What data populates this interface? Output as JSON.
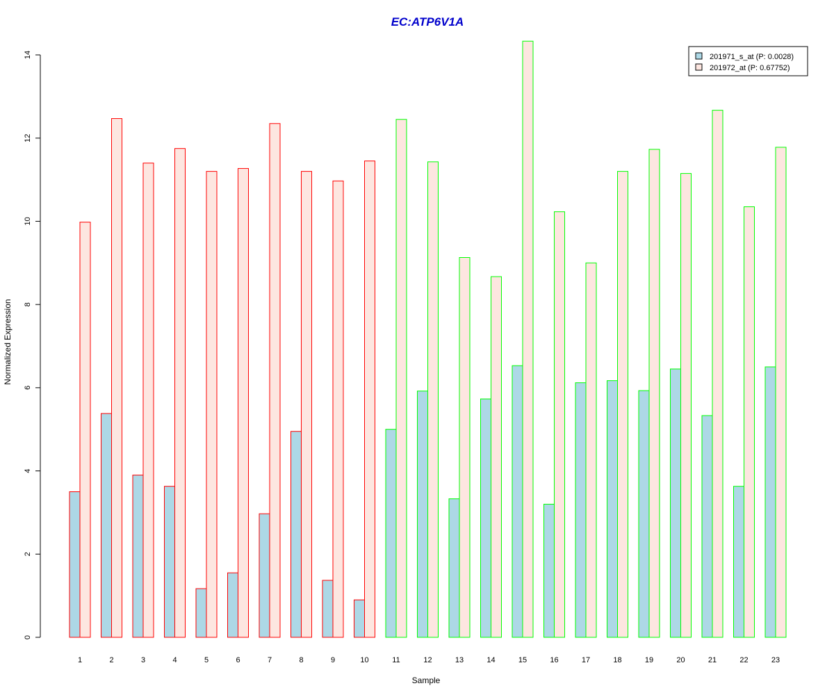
{
  "chart_data": {
    "type": "bar",
    "title": "EC:ATP6V1A",
    "xlabel": "Sample",
    "ylabel": "Normalized Expression",
    "ylim": [
      0,
      14
    ],
    "yticks": [
      0,
      2,
      4,
      6,
      8,
      10,
      12,
      14
    ],
    "categories": [
      "1",
      "2",
      "3",
      "4",
      "5",
      "6",
      "7",
      "8",
      "9",
      "10",
      "11",
      "12",
      "13",
      "14",
      "15",
      "16",
      "17",
      "18",
      "19",
      "20",
      "21",
      "22",
      "23"
    ],
    "series": [
      {
        "name": "201971_s_at (P: 0.0028)",
        "fill": "#add8e6",
        "values": [
          3.5,
          5.38,
          3.9,
          3.63,
          1.17,
          1.55,
          2.97,
          4.95,
          1.37,
          0.9,
          5.0,
          5.92,
          3.33,
          5.73,
          6.53,
          3.2,
          6.12,
          6.17,
          5.93,
          6.45,
          5.33,
          3.63,
          6.5
        ]
      },
      {
        "name": "201972_at (P: 0.67752)",
        "fill": "#fde6e0",
        "values": [
          9.98,
          12.47,
          11.4,
          11.75,
          11.2,
          11.27,
          12.35,
          11.2,
          10.97,
          11.45,
          12.45,
          11.43,
          9.13,
          8.67,
          14.33,
          10.23,
          9.0,
          11.2,
          11.73,
          11.15,
          12.67,
          10.35,
          11.78
        ]
      }
    ],
    "group_border_colors": [
      "#ff0000",
      "#ff0000",
      "#ff0000",
      "#ff0000",
      "#ff0000",
      "#ff0000",
      "#ff0000",
      "#ff0000",
      "#ff0000",
      "#ff0000",
      "#00ff00",
      "#00ff00",
      "#00ff00",
      "#00ff00",
      "#00ff00",
      "#00ff00",
      "#00ff00",
      "#00ff00",
      "#00ff00",
      "#00ff00",
      "#00ff00",
      "#00ff00",
      "#00ff00"
    ],
    "title_color": "#0000cc",
    "legend_position": "top-right",
    "grid": false
  }
}
